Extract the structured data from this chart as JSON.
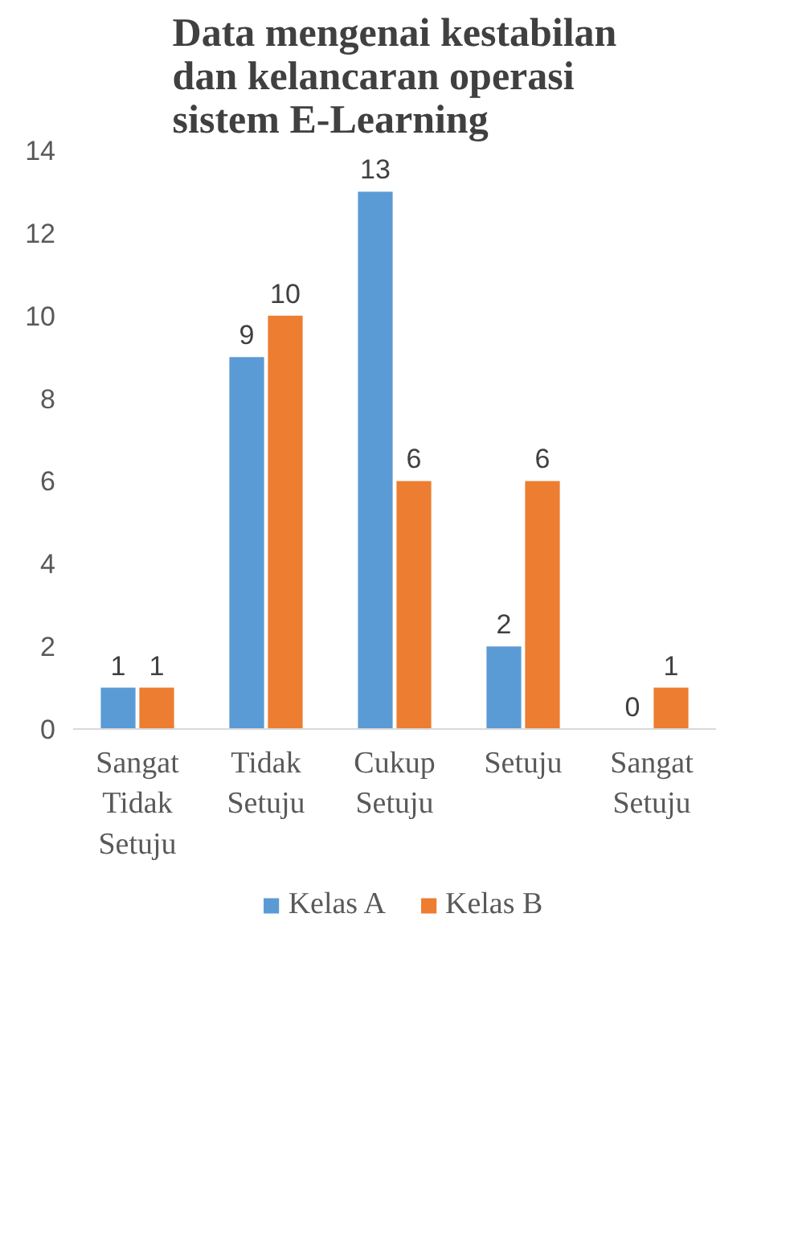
{
  "chart_data": {
    "type": "bar",
    "title": "Data mengenai kestabilan dan kelancaran operasi sistem E-Learning",
    "categories": [
      "Sangat Tidak Setuju",
      "Tidak Setuju",
      "Cukup Setuju",
      "Setuju",
      "Sangat Setuju"
    ],
    "series": [
      {
        "name": "Kelas A",
        "color": "#5b9bd5",
        "values": [
          1,
          9,
          13,
          2,
          0
        ]
      },
      {
        "name": "Kelas B",
        "color": "#ed7d31",
        "values": [
          1,
          10,
          6,
          6,
          1
        ]
      }
    ],
    "ylim": [
      0,
      14
    ],
    "yticks": [
      0,
      2,
      4,
      6,
      8,
      10,
      12,
      14
    ],
    "grid": false,
    "legend": "bottom",
    "data_labels": true
  }
}
